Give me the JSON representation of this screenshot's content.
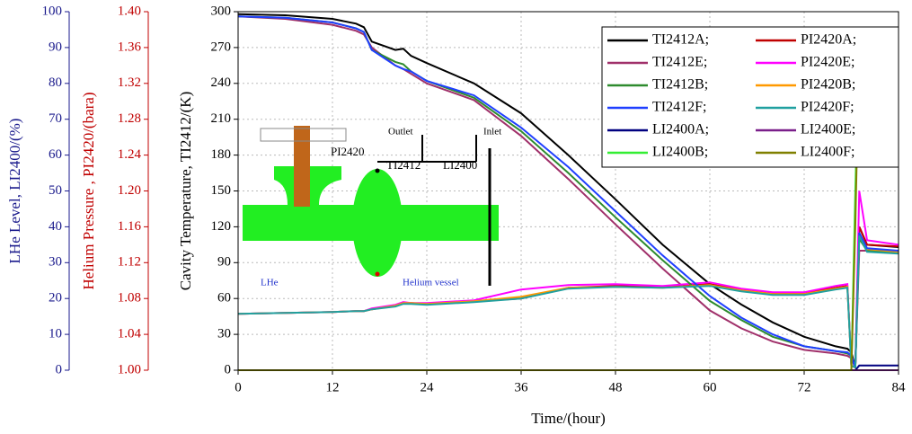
{
  "chart_data": {
    "type": "line",
    "x_label": "Time/(hour)",
    "y_label": "Cavity Temperature, TI2412/(K)",
    "y2_label": "Helium Pressure , PI2420/(bara)",
    "y3_label": "LHe Level, LI2400/(%)",
    "xlim": [
      0,
      84
    ],
    "xticks": [
      0,
      12,
      24,
      36,
      48,
      60,
      72,
      84
    ],
    "ylim": [
      0,
      300
    ],
    "yticks": [
      0,
      30,
      60,
      90,
      120,
      150,
      180,
      210,
      240,
      270,
      300
    ],
    "y2lim": [
      1.0,
      1.4
    ],
    "y2ticks": [
      {
        "value": 1.0,
        "label": "1.00"
      },
      1.04,
      1.08,
      1.12,
      1.16,
      {
        "value": 1.2,
        "label": "1.20"
      },
      1.24,
      1.28,
      1.32,
      1.36,
      {
        "value": 1.4,
        "label": "1.40"
      }
    ],
    "y3lim": [
      0,
      100
    ],
    "y3ticks": [
      0,
      10,
      20,
      30,
      40,
      50,
      60,
      70,
      80,
      90,
      100
    ],
    "y2_color": "#c00000",
    "y3_color": "#1a1a8c",
    "grid": true,
    "legend": "upper right",
    "annotations": [
      "Outlet",
      "Inlet",
      "PI2420",
      "TI2412",
      "LI2400",
      "LHe",
      "Helium vessel"
    ],
    "x": [
      0,
      6,
      12,
      15,
      16,
      17,
      20,
      21,
      22,
      24,
      30,
      36,
      42,
      48,
      54,
      60,
      64,
      68,
      72,
      76,
      77.5,
      78,
      78.5,
      79,
      80,
      84
    ],
    "series": [
      {
        "name": "TI2412A;",
        "color": "#000000",
        "values": [
          298,
          297,
          294,
          290,
          287,
          275,
          268,
          269,
          263,
          257,
          240,
          215,
          180,
          143,
          105,
          72,
          55,
          40,
          28,
          20,
          18,
          15,
          2,
          120,
          105,
          103
        ]
      },
      {
        "name": "PI2420A;",
        "color": "#c00000",
        "axis": "y2",
        "values": [
          1.063,
          1.064,
          1.065,
          1.066,
          1.066,
          1.068,
          1.072,
          1.075,
          1.075,
          1.074,
          1.077,
          1.08,
          1.092,
          1.094,
          1.093,
          1.096,
          1.09,
          1.086,
          1.086,
          1.092,
          1.094,
          1.005,
          1.003,
          1.16,
          1.14,
          1.138
        ]
      },
      {
        "name": "TI2412E;",
        "color": "#a0306a",
        "values": [
          296,
          294,
          289,
          284,
          281,
          270,
          255,
          252,
          248,
          240,
          226,
          196,
          160,
          122,
          85,
          50,
          35,
          24,
          17,
          14,
          12,
          10,
          2,
          100,
          100,
          98
        ]
      },
      {
        "name": "PI2420E;",
        "color": "#ff00ff",
        "axis": "y2",
        "values": [
          1.063,
          1.064,
          1.065,
          1.066,
          1.066,
          1.069,
          1.073,
          1.076,
          1.075,
          1.075,
          1.078,
          1.09,
          1.095,
          1.096,
          1.094,
          1.098,
          1.091,
          1.087,
          1.087,
          1.094,
          1.096,
          1.005,
          1.003,
          1.2,
          1.145,
          1.14
        ]
      },
      {
        "name": "TI2412B;",
        "color": "#2e8b2e",
        "values": [
          296,
          295,
          291,
          286,
          283,
          268,
          258,
          256,
          250,
          242,
          228,
          200,
          165,
          128,
          92,
          58,
          42,
          28,
          20,
          16,
          14,
          12,
          2,
          110,
          100,
          98
        ]
      },
      {
        "name": "PI2420B;",
        "color": "#ff9900",
        "axis": "y2",
        "values": [
          1.063,
          1.064,
          1.065,
          1.066,
          1.066,
          1.068,
          1.072,
          1.075,
          1.075,
          1.074,
          1.077,
          1.082,
          1.092,
          1.093,
          1.092,
          1.095,
          1.089,
          1.085,
          1.085,
          1.091,
          1.093,
          1.005,
          1.003,
          1.15,
          1.135,
          1.132
        ]
      },
      {
        "name": "TI2412F;",
        "color": "#1f3fff",
        "values": [
          296,
          295,
          291,
          286,
          283,
          268,
          255,
          252,
          250,
          242,
          230,
          203,
          170,
          133,
          96,
          62,
          44,
          30,
          20,
          16,
          15,
          12,
          2,
          115,
          102,
          100
        ]
      },
      {
        "name": "PI2420F;",
        "color": "#20a0a0",
        "axis": "y2",
        "values": [
          1.063,
          1.064,
          1.065,
          1.066,
          1.066,
          1.068,
          1.071,
          1.074,
          1.074,
          1.073,
          1.076,
          1.08,
          1.091,
          1.093,
          1.092,
          1.094,
          1.088,
          1.084,
          1.084,
          1.09,
          1.092,
          1.005,
          1.003,
          1.15,
          1.132,
          1.13
        ]
      },
      {
        "name": "LI2400A;",
        "color": "#000080",
        "axis": "y3",
        "values": [
          0,
          0,
          0,
          0,
          0,
          0,
          0,
          0,
          0,
          0,
          0,
          0,
          0,
          0,
          0,
          0,
          0,
          0,
          0,
          0,
          0,
          0,
          0,
          1.3,
          1.3,
          1.3
        ]
      },
      {
        "name": "LI2400E;",
        "color": "#7a1f8a",
        "axis": "y3",
        "values": [
          0,
          0,
          0,
          0,
          0,
          0,
          0,
          0,
          0,
          0,
          0,
          0,
          0,
          0,
          0,
          0,
          0,
          0,
          0,
          0,
          0,
          0,
          0,
          0,
          0,
          0
        ]
      },
      {
        "name": "LI2400B;",
        "color": "#33ee33",
        "axis": "y3",
        "values": [
          0,
          0,
          0,
          0,
          0,
          0,
          0,
          0,
          0,
          0,
          0,
          0,
          0,
          0,
          0,
          0,
          0,
          0,
          0,
          0,
          0,
          0,
          50,
          92,
          92,
          92
        ]
      },
      {
        "name": "LI2400F;",
        "color": "#808000",
        "axis": "y3",
        "values": [
          0,
          0,
          0,
          0,
          0,
          0,
          0,
          0,
          0,
          0,
          0,
          0,
          0,
          0,
          0,
          0,
          0,
          0,
          0,
          0,
          0,
          0,
          40,
          92,
          91.5,
          91.5
        ]
      }
    ]
  }
}
